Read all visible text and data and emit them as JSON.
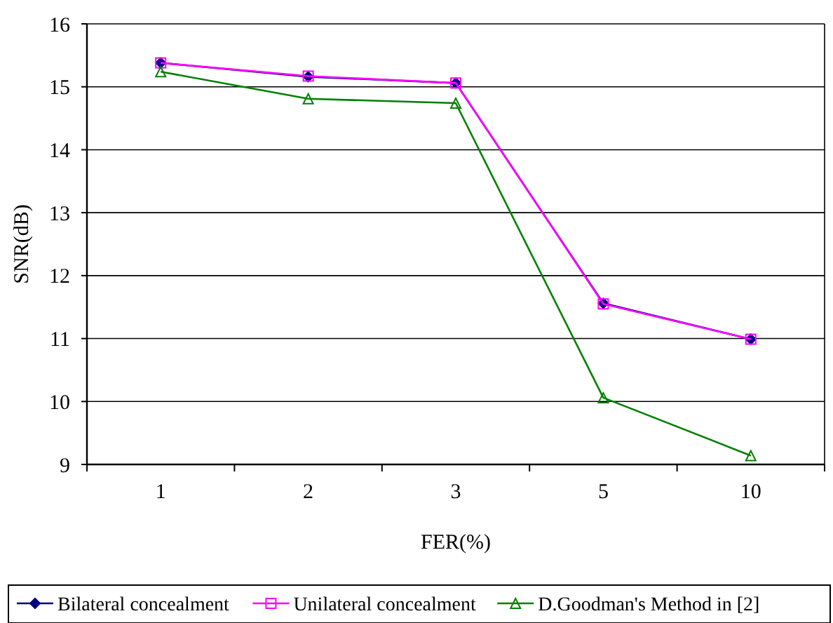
{
  "chart_data": {
    "type": "line",
    "xlabel": "FER(%)",
    "ylabel": "SNR(dB)",
    "categories": [
      "1",
      "2",
      "3",
      "5",
      "10"
    ],
    "ylim": [
      9,
      16
    ],
    "yticks": [
      9,
      10,
      11,
      12,
      13,
      14,
      15,
      16
    ],
    "grid": "y",
    "legend": "bottom",
    "series": [
      {
        "name": "Bilateral concealment",
        "color": "#000080",
        "marker": "diamond",
        "values": [
          15.38,
          15.16,
          15.06,
          11.56,
          10.99
        ]
      },
      {
        "name": "Unilateral concealment",
        "color": "#ff00ff",
        "marker": "square",
        "values": [
          15.38,
          15.17,
          15.06,
          11.55,
          10.99
        ]
      },
      {
        "name": "D.Goodman's Method in [2]",
        "color": "#008000",
        "marker": "triangle",
        "values": [
          15.24,
          14.81,
          14.74,
          10.06,
          9.14
        ]
      }
    ]
  }
}
